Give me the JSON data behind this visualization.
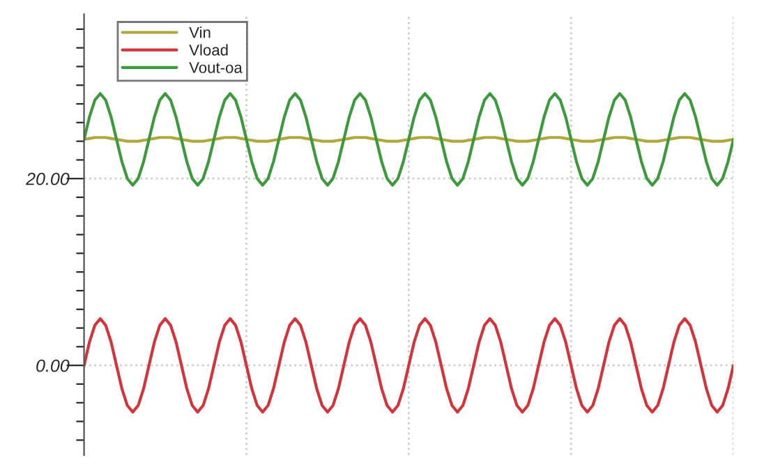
{
  "chart_data": {
    "type": "line",
    "categories": [
      null,
      null,
      null,
      null,
      null,
      null,
      null,
      null,
      null,
      null,
      null,
      null,
      null,
      null,
      null,
      null,
      null,
      null,
      null,
      null,
      null,
      null,
      null,
      null,
      null,
      null,
      null,
      null,
      null,
      null,
      null,
      null,
      null,
      null,
      null,
      null,
      null,
      null,
      null,
      null,
      null,
      null,
      null,
      null,
      null,
      null,
      null,
      null,
      null,
      null,
      null,
      null,
      null,
      null,
      null,
      null,
      null,
      null,
      null,
      null,
      null,
      null,
      null,
      null,
      null,
      null,
      null,
      null,
      null,
      null,
      null,
      null,
      null,
      null,
      null,
      null,
      null,
      null,
      null,
      null,
      null,
      null,
      null,
      null,
      null,
      null,
      null,
      null,
      null,
      null,
      null,
      null,
      null,
      null,
      null,
      null,
      null,
      null,
      null,
      null,
      null,
      null,
      null,
      null,
      null,
      null,
      null,
      null,
      null,
      null,
      null,
      null,
      null,
      null,
      null,
      null,
      null,
      null,
      null,
      null,
      null
    ],
    "series": [
      {
        "name": "Vin",
        "color": "#b0a83c",
        "values": [
          24.2,
          24.3,
          24.4,
          24.4,
          24.4,
          24.3,
          24.2,
          24.1,
          24,
          24,
          24,
          24.1,
          24.2,
          24.3,
          24.4,
          24.4,
          24.4,
          24.3,
          24.2,
          24.1,
          24,
          24,
          24,
          24.1,
          24.2,
          24.3,
          24.4,
          24.4,
          24.4,
          24.3,
          24.2,
          24.1,
          24,
          24,
          24,
          24.1,
          24.2,
          24.3,
          24.4,
          24.4,
          24.4,
          24.3,
          24.2,
          24.1,
          24,
          24,
          24,
          24.1,
          24.2,
          24.3,
          24.4,
          24.4,
          24.4,
          24.3,
          24.2,
          24.1,
          24,
          24,
          24,
          24.1,
          24.2,
          24.3,
          24.4,
          24.4,
          24.4,
          24.3,
          24.2,
          24.1,
          24,
          24,
          24,
          24.1,
          24.2,
          24.3,
          24.4,
          24.4,
          24.4,
          24.3,
          24.2,
          24.1,
          24,
          24,
          24,
          24.1,
          24.2,
          24.3,
          24.4,
          24.4,
          24.4,
          24.3,
          24.2,
          24.1,
          24,
          24,
          24,
          24.1,
          24.2,
          24.3,
          24.4,
          24.4,
          24.4,
          24.3,
          24.2,
          24.1,
          24,
          24,
          24,
          24.1,
          24.2,
          24.3,
          24.4,
          24.4,
          24.4,
          24.3,
          24.2,
          24.1,
          24,
          24,
          24,
          24.1,
          24.2
        ]
      },
      {
        "name": "Vload",
        "color": "#d2343c",
        "values": [
          0,
          2.5,
          4.3,
          5,
          4.3,
          2.5,
          0,
          -2.5,
          -4.3,
          -5,
          -4.3,
          -2.5,
          0,
          2.5,
          4.3,
          5,
          4.3,
          2.5,
          0,
          -2.5,
          -4.3,
          -5,
          -4.3,
          -2.5,
          0,
          2.5,
          4.3,
          5,
          4.3,
          2.5,
          0,
          -2.5,
          -4.3,
          -5,
          -4.3,
          -2.5,
          0,
          2.5,
          4.3,
          5,
          4.3,
          2.5,
          0,
          -2.5,
          -4.3,
          -5,
          -4.3,
          -2.5,
          0,
          2.5,
          4.3,
          5,
          4.3,
          2.5,
          0,
          -2.5,
          -4.3,
          -5,
          -4.3,
          -2.5,
          0,
          2.5,
          4.3,
          5,
          4.3,
          2.5,
          0,
          -2.5,
          -4.3,
          -5,
          -4.3,
          -2.5,
          0,
          2.5,
          4.3,
          5,
          4.3,
          2.5,
          0,
          -2.5,
          -4.3,
          -5,
          -4.3,
          -2.5,
          0,
          2.5,
          4.3,
          5,
          4.3,
          2.5,
          0,
          -2.5,
          -4.3,
          -5,
          -4.3,
          -2.5,
          0,
          2.5,
          4.3,
          5,
          4.3,
          2.5,
          0,
          -2.5,
          -4.3,
          -5,
          -4.3,
          -2.5,
          0,
          2.5,
          4.3,
          5,
          4.3,
          2.5,
          0,
          -2.5,
          -4.3,
          -5,
          -4.3,
          -2.5,
          0
        ]
      },
      {
        "name": "Vout-oa",
        "color": "#3c9a3c",
        "values": [
          24.2,
          26.6,
          28.4,
          29.1,
          28.4,
          26.6,
          24.2,
          21.8,
          20,
          19.3,
          20,
          21.8,
          24.2,
          26.6,
          28.4,
          29.1,
          28.4,
          26.6,
          24.2,
          21.8,
          20,
          19.3,
          20,
          21.8,
          24.2,
          26.6,
          28.4,
          29.1,
          28.4,
          26.6,
          24.2,
          21.8,
          20,
          19.3,
          20,
          21.8,
          24.2,
          26.6,
          28.4,
          29.1,
          28.4,
          26.6,
          24.2,
          21.8,
          20,
          19.3,
          20,
          21.8,
          24.2,
          26.6,
          28.4,
          29.1,
          28.4,
          26.6,
          24.2,
          21.8,
          20,
          19.3,
          20,
          21.8,
          24.2,
          26.6,
          28.4,
          29.1,
          28.4,
          26.6,
          24.2,
          21.8,
          20,
          19.3,
          20,
          21.8,
          24.2,
          26.6,
          28.4,
          29.1,
          28.4,
          26.6,
          24.2,
          21.8,
          20,
          19.3,
          20,
          21.8,
          24.2,
          26.6,
          28.4,
          29.1,
          28.4,
          26.6,
          24.2,
          21.8,
          20,
          19.3,
          20,
          21.8,
          24.2,
          26.6,
          28.4,
          29.1,
          28.4,
          26.6,
          24.2,
          21.8,
          20,
          19.3,
          20,
          21.8,
          24.2,
          26.6,
          28.4,
          29.1,
          28.4,
          26.6,
          24.2,
          21.8,
          20,
          19.3,
          20,
          21.8,
          24.2
        ]
      }
    ],
    "ylim": [
      -9.6,
      37.6
    ],
    "yticks": [
      {
        "value": -8,
        "label": null
      },
      {
        "value": -6,
        "label": null
      },
      {
        "value": -4,
        "label": null
      },
      {
        "value": -2,
        "label": null
      },
      {
        "value": 0,
        "label": "0.00"
      },
      {
        "value": 2,
        "label": null
      },
      {
        "value": 4,
        "label": null
      },
      {
        "value": 6,
        "label": null
      },
      {
        "value": 8,
        "label": null
      },
      {
        "value": 10,
        "label": null
      },
      {
        "value": 12,
        "label": null
      },
      {
        "value": 14,
        "label": null
      },
      {
        "value": 16,
        "label": null
      },
      {
        "value": 18,
        "label": null
      },
      {
        "value": 20,
        "label": "20.00"
      },
      {
        "value": 22,
        "label": null
      },
      {
        "value": 24,
        "label": null
      },
      {
        "value": 26,
        "label": null
      },
      {
        "value": 28,
        "label": null
      },
      {
        "value": 30,
        "label": null
      },
      {
        "value": 32,
        "label": null
      },
      {
        "value": 34,
        "label": null
      },
      {
        "value": 36,
        "label": null
      }
    ],
    "grid": true,
    "legend": "top left",
    "tick_labels": "y",
    "marker": "none",
    "line_style": "solid"
  }
}
